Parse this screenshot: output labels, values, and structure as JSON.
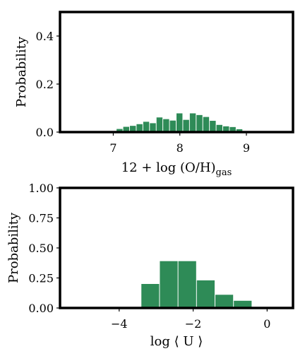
{
  "chart_data": [
    {
      "type": "bar",
      "xlabel_main": "12 + log (O/H)",
      "xlabel_sub": "gas",
      "ylabel": "Probability",
      "xlim": [
        6.2,
        9.7
      ],
      "ylim": [
        0.0,
        0.5
      ],
      "xticks": [
        7,
        8,
        9
      ],
      "xtick_labels": [
        "7",
        "8",
        "9"
      ],
      "yticks": [
        0.0,
        0.2,
        0.4
      ],
      "ytick_labels": [
        "0.0",
        "0.2",
        "0.4"
      ],
      "bin_width": 0.1,
      "bin_starts": [
        7.05,
        7.15,
        7.25,
        7.35,
        7.45,
        7.55,
        7.65,
        7.75,
        7.85,
        7.95,
        8.05,
        8.15,
        8.25,
        8.35,
        8.45,
        8.55,
        8.65,
        8.75,
        8.85
      ],
      "values": [
        0.013,
        0.022,
        0.026,
        0.033,
        0.043,
        0.037,
        0.061,
        0.054,
        0.048,
        0.078,
        0.051,
        0.078,
        0.071,
        0.063,
        0.047,
        0.03,
        0.024,
        0.021,
        0.012
      ],
      "color": "#2e8b57",
      "grid": false
    },
    {
      "type": "bar",
      "xlabel": "log ⟨ U ⟩",
      "ylabel": "Probability",
      "xlim": [
        -5.6,
        0.7
      ],
      "ylim": [
        0.0,
        1.0
      ],
      "xticks": [
        -4,
        -2,
        0
      ],
      "xtick_labels": [
        "−4",
        "−2",
        "0"
      ],
      "yticks": [
        0.0,
        0.25,
        0.5,
        0.75,
        1.0
      ],
      "ytick_labels": [
        "0.00",
        "0.25",
        "0.50",
        "0.75",
        "1.00"
      ],
      "bin_width": 0.5,
      "bin_starts": [
        -3.4,
        -2.9,
        -2.4,
        -1.9,
        -1.4,
        -0.9
      ],
      "values": [
        0.2,
        0.39,
        0.39,
        0.23,
        0.11,
        0.06
      ],
      "color": "#2e8b57",
      "grid": false
    }
  ]
}
